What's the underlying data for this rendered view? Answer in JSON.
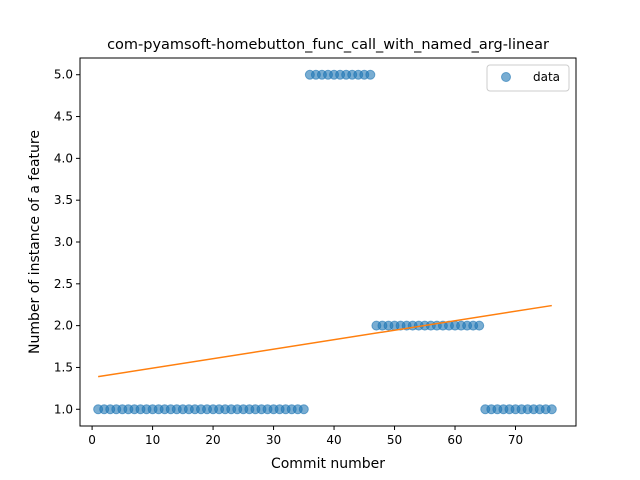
{
  "chart_data": {
    "type": "scatter",
    "title": "com-pyamsoft-homebutton_func_call_with_named_arg-linear",
    "xlabel": "Commit number",
    "ylabel": "Number of instance of a feature",
    "xlim": [
      -2,
      80
    ],
    "ylim": [
      0.8,
      5.2
    ],
    "xticks": [
      0,
      10,
      20,
      30,
      40,
      50,
      60,
      70
    ],
    "yticks": [
      1.0,
      1.5,
      2.0,
      2.5,
      3.0,
      3.5,
      4.0,
      4.5,
      5.0
    ],
    "xtick_labels": [
      "0",
      "10",
      "20",
      "30",
      "40",
      "50",
      "60",
      "70"
    ],
    "ytick_labels": [
      "1.0",
      "1.5",
      "2.0",
      "2.5",
      "3.0",
      "3.5",
      "4.0",
      "4.5",
      "5.0"
    ],
    "grid": false,
    "legend": {
      "placement": "top-right",
      "entries": [
        "data"
      ]
    },
    "series": [
      {
        "name": "data",
        "kind": "scatter",
        "color": "#1f77b4",
        "x": [
          1,
          2,
          3,
          4,
          5,
          6,
          7,
          8,
          9,
          10,
          11,
          12,
          13,
          14,
          15,
          16,
          17,
          18,
          19,
          20,
          21,
          22,
          23,
          24,
          25,
          26,
          27,
          28,
          29,
          30,
          31,
          32,
          33,
          34,
          35,
          36,
          37,
          38,
          39,
          40,
          41,
          42,
          43,
          44,
          45,
          46,
          47,
          48,
          49,
          50,
          51,
          52,
          53,
          54,
          55,
          56,
          57,
          58,
          59,
          60,
          61,
          62,
          63,
          64,
          65,
          66,
          67,
          68,
          69,
          70,
          71,
          72,
          73,
          74,
          75,
          76
        ],
        "y": [
          1,
          1,
          1,
          1,
          1,
          1,
          1,
          1,
          1,
          1,
          1,
          1,
          1,
          1,
          1,
          1,
          1,
          1,
          1,
          1,
          1,
          1,
          1,
          1,
          1,
          1,
          1,
          1,
          1,
          1,
          1,
          1,
          1,
          1,
          1,
          5,
          5,
          5,
          5,
          5,
          5,
          5,
          5,
          5,
          5,
          5,
          2,
          2,
          2,
          2,
          2,
          2,
          2,
          2,
          2,
          2,
          2,
          2,
          2,
          2,
          2,
          2,
          2,
          2,
          1,
          1,
          1,
          1,
          1,
          1,
          1,
          1,
          1,
          1,
          1,
          1
        ]
      },
      {
        "kind": "line",
        "color": "#ff7f0e",
        "x": [
          1,
          76
        ],
        "y": [
          1.39,
          2.24
        ]
      }
    ]
  }
}
